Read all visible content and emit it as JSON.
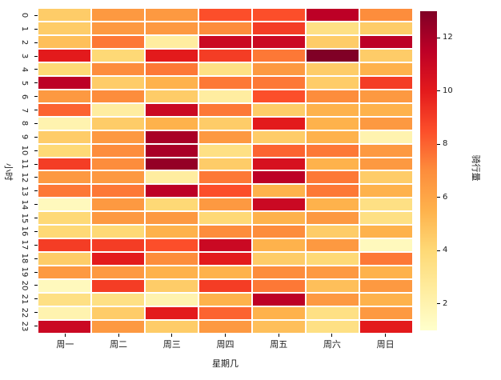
{
  "figure": {
    "background": "#ffffff",
    "text_color": "#1a1a1a",
    "grid_line_color": "#ffffff"
  },
  "chart_data": {
    "type": "heatmap",
    "title": "",
    "xlabel": "星期几",
    "ylabel": "小时",
    "x_categories": [
      "周一",
      "周二",
      "周三",
      "周四",
      "周五",
      "周六",
      "周日"
    ],
    "y_categories": [
      "0",
      "1",
      "2",
      "3",
      "4",
      "5",
      "6",
      "7",
      "8",
      "9",
      "10",
      "11",
      "12",
      "13",
      "14",
      "15",
      "16",
      "17",
      "18",
      "19",
      "20",
      "21",
      "22",
      "23"
    ],
    "values": [
      [
        4.5,
        6.5,
        6.5,
        8.5,
        8.5,
        11.5,
        7
      ],
      [
        4.5,
        6.5,
        6.5,
        7,
        9,
        3.5,
        4.5
      ],
      [
        5,
        7.5,
        2.5,
        11,
        11,
        4.5,
        11.5
      ],
      [
        10,
        4,
        10,
        9,
        7.5,
        13,
        4.5
      ],
      [
        4,
        7,
        7.5,
        3.5,
        6.5,
        4.5,
        5.5
      ],
      [
        11.5,
        4.5,
        5.5,
        7.5,
        7.5,
        4.5,
        9
      ],
      [
        6.5,
        7,
        4.5,
        2.5,
        8.5,
        7,
        6.5
      ],
      [
        8,
        2.5,
        11,
        7.5,
        4.5,
        5.5,
        5.5
      ],
      [
        2,
        4.5,
        5.5,
        4.5,
        10,
        5.5,
        6.5
      ],
      [
        4.5,
        6.5,
        12,
        6.5,
        4.5,
        5.5,
        2
      ],
      [
        4,
        7,
        12,
        3.5,
        8,
        7.5,
        6.5
      ],
      [
        9,
        7,
        12.5,
        4.5,
        10.5,
        5.5,
        6.5
      ],
      [
        6.5,
        6.5,
        2.5,
        7.5,
        11.5,
        7.5,
        4.5
      ],
      [
        7.5,
        7.5,
        11.5,
        8.5,
        5.5,
        7.5,
        5.5
      ],
      [
        1.5,
        6.5,
        4,
        6.5,
        11,
        5.5,
        3.5
      ],
      [
        4,
        6.5,
        6.5,
        4,
        5.5,
        6.5,
        3.5
      ],
      [
        4,
        4,
        5.5,
        7,
        7,
        4.5,
        5.5
      ],
      [
        9,
        9,
        8.5,
        11,
        5.5,
        6.5,
        1.5
      ],
      [
        4.5,
        10,
        7,
        10,
        4.5,
        4,
        7.5
      ],
      [
        6.5,
        6.5,
        5.5,
        5.5,
        7,
        6.5,
        5.5
      ],
      [
        1.5,
        9,
        4.5,
        9,
        7.5,
        5,
        6.5
      ],
      [
        3.5,
        3.5,
        2,
        5.5,
        11.5,
        6.5,
        5.5
      ],
      [
        2,
        4.5,
        10,
        8,
        5.5,
        3.5,
        6.5
      ],
      [
        11,
        6.5,
        4.5,
        6.5,
        5,
        3.5,
        10
      ]
    ],
    "colormap": "YlOrRd",
    "colormap_stops": [
      "#ffffcc",
      "#ffeda0",
      "#fed976",
      "#feb24c",
      "#fd8d3c",
      "#fc4e2a",
      "#e31a1c",
      "#bd0026",
      "#800026"
    ],
    "vmin": 1,
    "vmax": 13,
    "legend_position": "right",
    "grid": true,
    "colorbar": {
      "label": "骑行量",
      "ticks": [
        2,
        4,
        6,
        8,
        10,
        12
      ]
    }
  }
}
